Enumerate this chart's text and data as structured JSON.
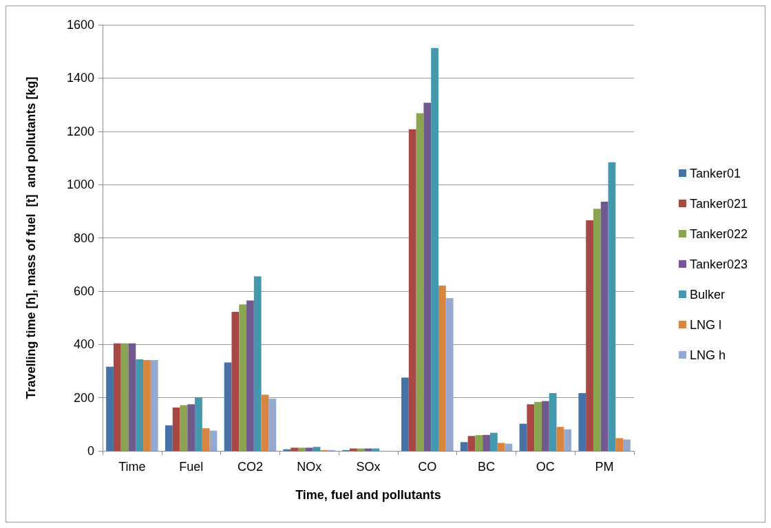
{
  "chart_data": {
    "type": "bar",
    "xlabel": "Time, fuel and pollutants",
    "ylabel": "Travelling time [h], mass of fuel  [t]  and pollutants [kg]",
    "categories": [
      "Time",
      "Fuel",
      "CO2",
      "NOx",
      "SOx",
      "CO",
      "BC",
      "OC",
      "PM"
    ],
    "series": [
      {
        "name": "Tanker01",
        "color": "#4572a7",
        "values": [
          316,
          96,
          332,
          6,
          3,
          275,
          33,
          102,
          217
        ]
      },
      {
        "name": "Tanker021",
        "color": "#aa4643",
        "values": [
          404,
          163,
          522,
          12,
          9,
          1208,
          56,
          175,
          866
        ]
      },
      {
        "name": "Tanker022",
        "color": "#89a54e",
        "values": [
          404,
          172,
          550,
          12,
          9,
          1268,
          59,
          184,
          909
        ]
      },
      {
        "name": "Tanker023",
        "color": "#71588f",
        "values": [
          404,
          175,
          565,
          12,
          9,
          1307,
          60,
          187,
          936
        ]
      },
      {
        "name": "Bulker",
        "color": "#4198af",
        "values": [
          344,
          201,
          655,
          15,
          9,
          1513,
          68,
          217,
          1084
        ]
      },
      {
        "name": "LNG l",
        "color": "#db843d",
        "values": [
          341,
          85,
          211,
          3,
          0,
          621,
          30,
          90,
          48
        ]
      },
      {
        "name": "LNG h",
        "color": "#93a9cf",
        "values": [
          341,
          76,
          196,
          3,
          0,
          574,
          27,
          81,
          43
        ]
      }
    ],
    "ylim": [
      0,
      1600
    ],
    "yticks": [
      0,
      200,
      400,
      600,
      800,
      1000,
      1200,
      1400,
      1600
    ],
    "grid": "y",
    "legend": "right"
  }
}
